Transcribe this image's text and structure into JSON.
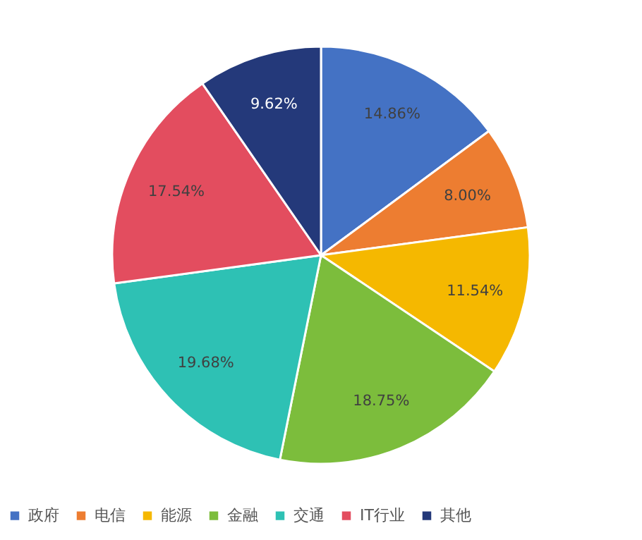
{
  "chart_data": {
    "type": "pie",
    "categories": [
      "政府",
      "电信",
      "能源",
      "金融",
      "交通",
      "IT行业",
      "其他"
    ],
    "values": [
      14.86,
      8.0,
      11.54,
      18.75,
      19.68,
      17.54,
      9.62
    ],
    "colors": [
      "#4472c4",
      "#ed7d31",
      "#f5b800",
      "#7cbd3c",
      "#2ec1b4",
      "#e34d5f",
      "#24397a"
    ],
    "value_labels": [
      "14.86%",
      "8.00%",
      "11.54%",
      "18.75%",
      "19.68%",
      "17.54%",
      "9.62%"
    ],
    "legend": "bottom"
  }
}
